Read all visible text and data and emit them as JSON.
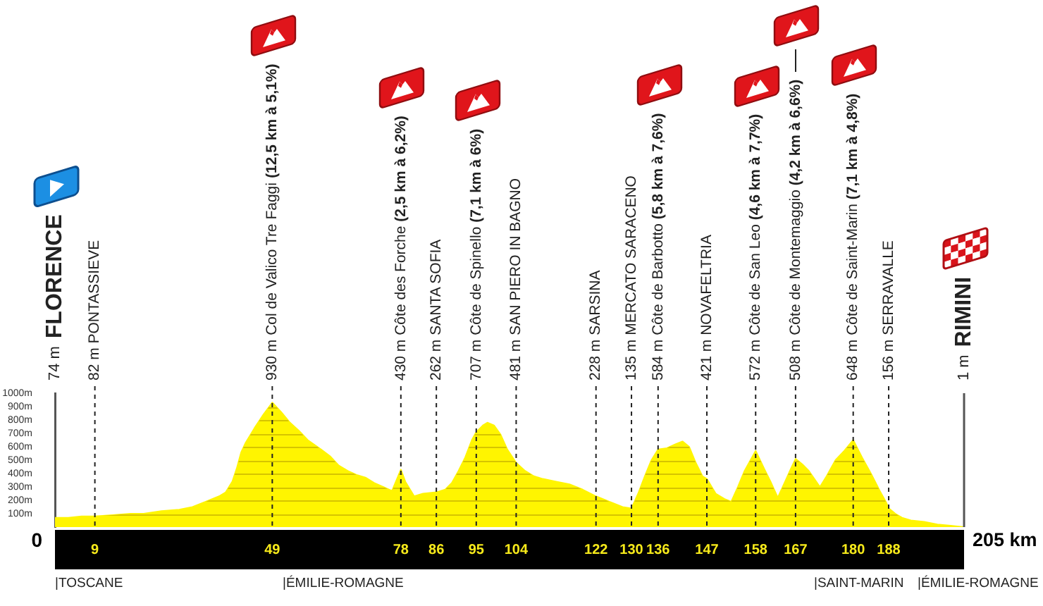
{
  "chart_data": {
    "type": "area",
    "color": "#fff500",
    "x": [
      0,
      3,
      6,
      9,
      13,
      17,
      20,
      24,
      28,
      31,
      34,
      37,
      38.5,
      40,
      41,
      42,
      43,
      45,
      47,
      49,
      51,
      53,
      55,
      57,
      60,
      62,
      64,
      66,
      68,
      70,
      72,
      74,
      76,
      78,
      79,
      81,
      83,
      86,
      88,
      89.5,
      91,
      92.5,
      94,
      95,
      96.5,
      97.5,
      99,
      100.5,
      102,
      104,
      106,
      108,
      110,
      113,
      116,
      119,
      122,
      125,
      128,
      130,
      131.5,
      133,
      134.5,
      136,
      138,
      140,
      141.5,
      143,
      144.5,
      146,
      147,
      149,
      151,
      152.5,
      154,
      155.5,
      158,
      160,
      161.5,
      163,
      164.5,
      166,
      167,
      168.5,
      170,
      172.5,
      174,
      176,
      178,
      180,
      182,
      184,
      186,
      187.5,
      188,
      189.5,
      191,
      193,
      196,
      199,
      202,
      205
    ],
    "values": [
      70,
      70,
      80,
      80,
      90,
      100,
      100,
      120,
      130,
      150,
      190,
      230,
      260,
      340,
      440,
      560,
      630,
      740,
      840,
      930,
      860,
      780,
      720,
      650,
      580,
      530,
      460,
      420,
      390,
      370,
      330,
      300,
      270,
      430,
      340,
      230,
      250,
      260,
      280,
      330,
      420,
      520,
      650,
      710,
      760,
      780,
      760,
      690,
      580,
      480,
      420,
      380,
      360,
      340,
      320,
      280,
      230,
      190,
      150,
      140,
      250,
      380,
      500,
      580,
      590,
      620,
      640,
      600,
      480,
      380,
      360,
      250,
      210,
      190,
      300,
      420,
      570,
      430,
      330,
      220,
      330,
      440,
      510,
      470,
      420,
      300,
      380,
      500,
      570,
      650,
      520,
      400,
      270,
      180,
      140,
      100,
      70,
      50,
      40,
      20,
      10,
      0
    ],
    "xlim": [
      0,
      205
    ],
    "xticks": [
      9,
      49,
      78,
      86,
      95,
      104,
      122,
      130,
      136,
      147,
      158,
      167,
      180,
      188
    ],
    "ylim": [
      0,
      1000
    ],
    "yticks": [
      {
        "value": 100,
        "label": "100m"
      },
      {
        "value": 200,
        "label": "200m"
      },
      {
        "value": 300,
        "label": "300m"
      },
      {
        "value": 400,
        "label": "400m"
      },
      {
        "value": 500,
        "label": "500m"
      },
      {
        "value": 600,
        "label": "600m"
      },
      {
        "value": 700,
        "label": "700m"
      },
      {
        "value": 800,
        "label": "800m"
      },
      {
        "value": 900,
        "label": "900m"
      },
      {
        "value": 1000,
        "label": "1000m"
      }
    ],
    "grid": "y",
    "ref_lines": [
      {
        "axis": "x",
        "value": 9,
        "label": "82 m PONTASSIEVE",
        "line_style": "dashed"
      },
      {
        "axis": "x",
        "value": 49,
        "label": "930 m Col de Valico Tre Faggi (12,5 km à 5,1%)",
        "line_style": "dashed"
      },
      {
        "axis": "x",
        "value": 78,
        "label": "430 m Côte des Forche (2,5 km à 6,2%)",
        "line_style": "dashed"
      },
      {
        "axis": "x",
        "value": 86,
        "label": "262 m SANTA SOFIA",
        "line_style": "dashed"
      },
      {
        "axis": "x",
        "value": 95,
        "label": "707 m Côte de Spinello (7,1 km à 6%)",
        "line_style": "dashed"
      },
      {
        "axis": "x",
        "value": 104,
        "label": "481 m SAN PIERO IN BAGNO",
        "line_style": "dashed"
      },
      {
        "axis": "x",
        "value": 122,
        "label": "228 m SARSINA",
        "line_style": "dashed"
      },
      {
        "axis": "x",
        "value": 130,
        "label": "135 m MERCATO SARACENO",
        "line_style": "dashed"
      },
      {
        "axis": "x",
        "value": 136,
        "label": "584 m Côte de Barbotto (5,8 km à 7,6%)",
        "line_style": "dashed"
      },
      {
        "axis": "x",
        "value": 147,
        "label": "421 m NOVAFELTRIA",
        "line_style": "dashed"
      },
      {
        "axis": "x",
        "value": 158,
        "label": "572 m Côte de San Leo (4,6 km à 7,7%)",
        "line_style": "dashed"
      },
      {
        "axis": "x",
        "value": 167,
        "label": "508 m Côte de Montemaggio (4,2 km à 6,6%)",
        "line_style": "dashed"
      },
      {
        "axis": "x",
        "value": 180,
        "label": "648 m Côte de Saint-Marin (7,1 km à 4,8%)",
        "line_style": "dashed"
      },
      {
        "axis": "x",
        "value": 188,
        "label": "156 m SERRAVALLE",
        "line_style": "dashed"
      },
      {
        "axis": "x",
        "value": 205,
        "label": "1 m RIMINI",
        "line_style": "solid"
      }
    ],
    "annotations": [
      "74 m FLORENCE",
      "0",
      "205 km",
      "|TOSCANE",
      "|ÉMILIE-ROMAGNE",
      "|SAINT-MARIN",
      "|ÉMILIE-ROMAGNE"
    ]
  }
}
